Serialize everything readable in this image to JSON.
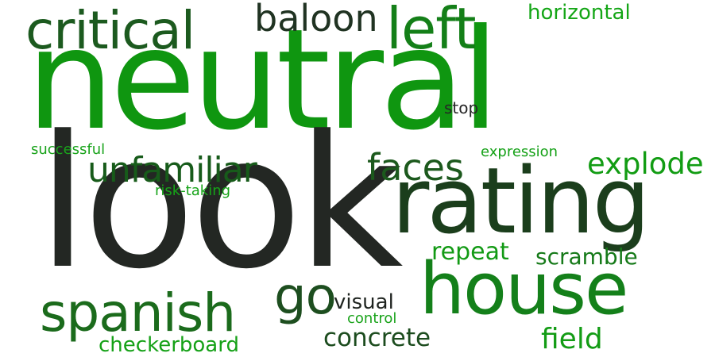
{
  "word_cloud": {
    "background": "#ffffff",
    "words": [
      {
        "text": "neutral",
        "color": "#0f9610"
      },
      {
        "text": "look",
        "color": "#232723"
      },
      {
        "text": "rating",
        "color": "#1b3e1c"
      },
      {
        "text": "house",
        "color": "#14801a"
      },
      {
        "text": "critical",
        "color": "#1c5a1f"
      },
      {
        "text": "left",
        "color": "#147f18"
      },
      {
        "text": "baloon",
        "color": "#203322"
      },
      {
        "text": "horizontal",
        "color": "#15a617"
      },
      {
        "text": "unfamiliar",
        "color": "#175b1a"
      },
      {
        "text": "spanish",
        "color": "#1b6b1c"
      },
      {
        "text": "faces",
        "color": "#1c591d"
      },
      {
        "text": "explode",
        "color": "#129c13"
      },
      {
        "text": "go",
        "color": "#1d4e1f"
      },
      {
        "text": "stop",
        "color": "#262626"
      },
      {
        "text": "successful",
        "color": "#19a31b"
      },
      {
        "text": "expression",
        "color": "#15a117"
      },
      {
        "text": "risk-taking",
        "color": "#16a318"
      },
      {
        "text": "repeat",
        "color": "#129a14"
      },
      {
        "text": "scramble",
        "color": "#167a19"
      },
      {
        "text": "visual",
        "color": "#1e231f"
      },
      {
        "text": "control",
        "color": "#1aa31b"
      },
      {
        "text": "checkerboard",
        "color": "#15a117"
      },
      {
        "text": "concrete",
        "color": "#1c4c1e"
      },
      {
        "text": "field",
        "color": "#139c15"
      }
    ]
  }
}
